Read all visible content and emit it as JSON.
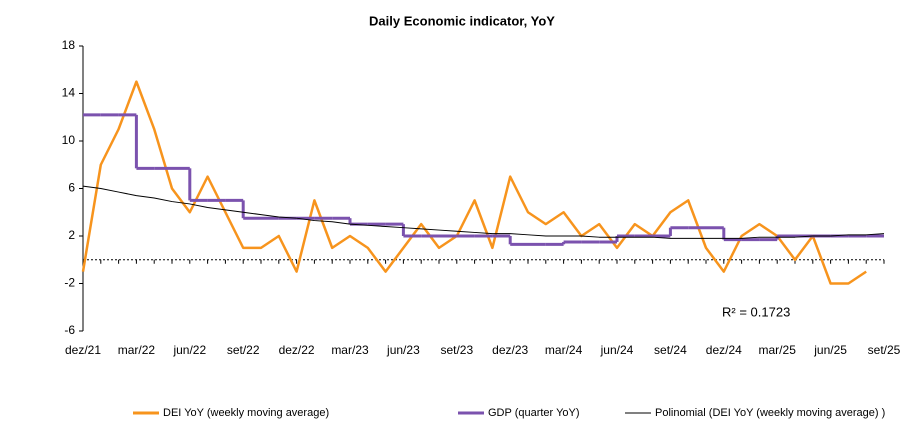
{
  "chart_data": {
    "type": "line",
    "title": "Daily Economic indicator, YoY",
    "categories": [
      "dez/21",
      null,
      null,
      "mar/22",
      null,
      null,
      "jun/22",
      null,
      null,
      "set/22",
      null,
      null,
      "dez/22",
      null,
      null,
      "mar/23",
      null,
      null,
      "jun/23",
      null,
      null,
      "set/23",
      null,
      null,
      "dez/23",
      null,
      null,
      "mar/24",
      null,
      null,
      "jun/24",
      null,
      null,
      "set/24",
      null,
      null,
      "dez/24",
      null,
      null,
      "mar/25",
      null,
      null,
      "jun/25",
      null,
      null,
      "set/25"
    ],
    "series": [
      {
        "name": "DEI YoY (weekly moving average)",
        "color": "#f7941d",
        "style": "line",
        "values": [
          -1,
          8,
          11,
          15,
          11,
          6,
          4,
          7,
          4,
          1,
          1,
          2,
          -1,
          5,
          1,
          2,
          1,
          -1,
          1,
          3,
          1,
          2,
          5,
          1,
          7,
          4,
          3,
          4,
          2,
          3,
          1,
          3,
          2,
          4,
          5,
          1,
          -1,
          2,
          3,
          2,
          0,
          2,
          -2,
          -2,
          -1,
          null
        ]
      },
      {
        "name": "GDP (quarter YoY)",
        "color": "#7b52ae",
        "style": "step",
        "values": [
          12.2,
          12.2,
          12.2,
          7.7,
          7.7,
          7.7,
          5,
          5,
          5,
          3.5,
          3.5,
          3.5,
          3.5,
          3.5,
          3.5,
          3,
          3,
          3,
          2,
          2,
          2,
          2,
          2,
          2,
          1.3,
          1.3,
          1.3,
          1.5,
          1.5,
          1.5,
          2,
          2,
          2,
          2.7,
          2.7,
          2.7,
          1.7,
          1.7,
          1.7,
          2,
          2,
          2,
          2,
          2,
          2,
          null
        ]
      },
      {
        "name": "Polinomial (DEI YoY (weekly moving average) )",
        "color": "#000000",
        "style": "line",
        "values": [
          6.2,
          6.0,
          5.7,
          5.4,
          5.2,
          4.9,
          4.7,
          4.4,
          4.2,
          4.0,
          3.8,
          3.6,
          3.5,
          3.3,
          3.2,
          3.0,
          2.9,
          2.8,
          2.7,
          2.6,
          2.5,
          2.4,
          2.3,
          2.2,
          2.2,
          2.1,
          2.0,
          2.0,
          2.0,
          1.9,
          1.9,
          1.9,
          1.9,
          1.8,
          1.8,
          1.8,
          1.8,
          1.8,
          1.9,
          1.9,
          1.9,
          2.0,
          2.0,
          2.1,
          2.1,
          2.2
        ]
      }
    ],
    "annotation": "R² = 0.1723",
    "ylim": [
      -6,
      18
    ],
    "yticks": [
      -6,
      -2,
      2,
      6,
      10,
      14,
      18
    ],
    "grid": false,
    "legend": "bottom"
  }
}
